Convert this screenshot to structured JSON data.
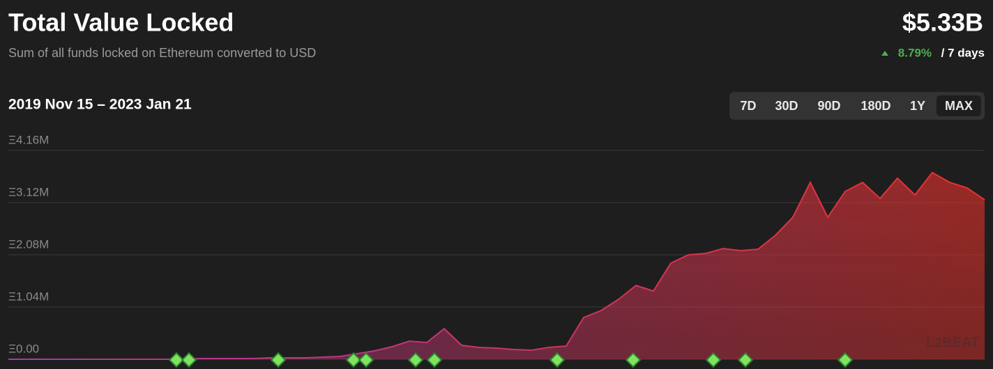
{
  "header": {
    "title": "Total Value Locked",
    "subtitle": "Sum of all funds locked on Ethereum converted to USD",
    "value": "$5.33B",
    "change": "8.79%",
    "change_period": "/ 7 days"
  },
  "range": {
    "label": "2019 Nov 15 – 2023 Jan 21",
    "buttons": [
      "7D",
      "30D",
      "90D",
      "180D",
      "1Y",
      "MAX"
    ],
    "selected": "MAX"
  },
  "logo": "L2BEAT",
  "chart_data": {
    "type": "area",
    "values": [
      0,
      0,
      0,
      0,
      0,
      0,
      0,
      0,
      0,
      0,
      0,
      14000,
      14000,
      14000,
      14000,
      28000,
      28000,
      28000,
      42000,
      55000,
      111000,
      166000,
      250000,
      361000,
      333000,
      610000,
      277000,
      236000,
      222000,
      194000,
      180000,
      236000,
      263000,
      832000,
      971000,
      1192000,
      1470000,
      1359000,
      1914000,
      2080000,
      2108000,
      2205000,
      2163000,
      2191000,
      2468000,
      2829000,
      3522000,
      2829000,
      3342000,
      3522000,
      3203000,
      3606000,
      3273000,
      3717000,
      3522000,
      3411000,
      3175000
    ],
    "ylim": [
      0,
      4160000
    ],
    "yticks": [
      {
        "value": 0,
        "label": "Ξ0.00"
      },
      {
        "value": 1040000,
        "label": "Ξ1.04M"
      },
      {
        "value": 2080000,
        "label": "Ξ2.08M"
      },
      {
        "value": 3120000,
        "label": "Ξ3.12M"
      },
      {
        "value": 4160000,
        "label": "Ξ4.16M"
      }
    ],
    "grid": true,
    "color_start": "#a83aa6",
    "color_end": "#e8322a"
  }
}
